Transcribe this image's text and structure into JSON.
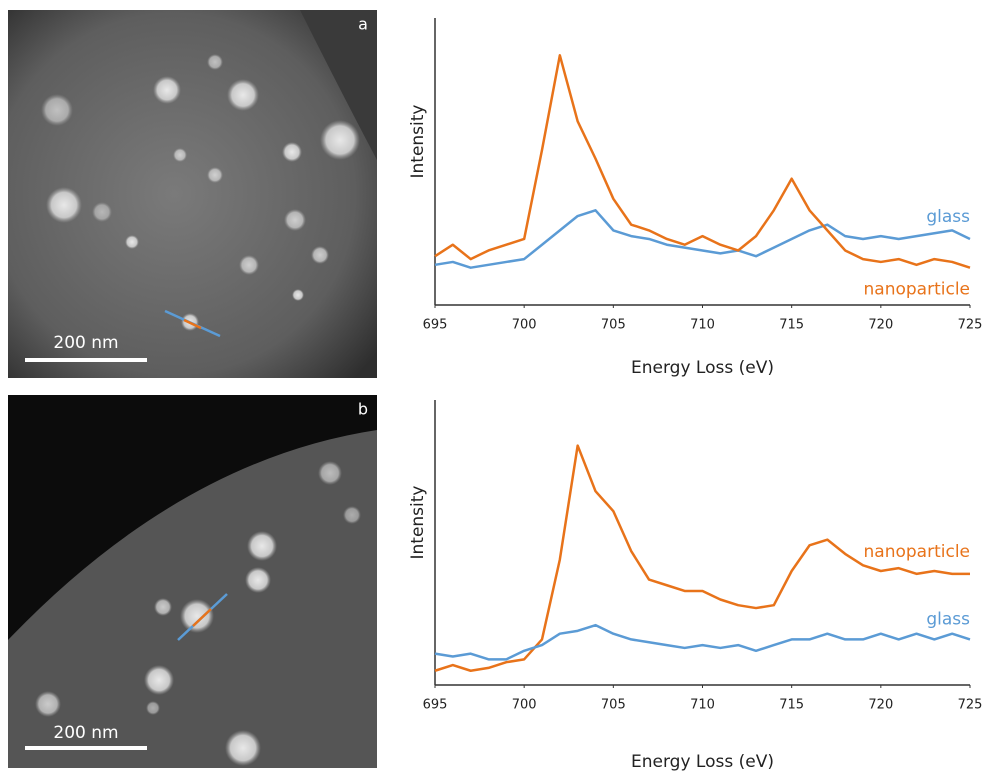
{
  "images": [
    {
      "label": "a",
      "scale_bar": "200 nm"
    },
    {
      "label": "b",
      "scale_bar": "200 nm"
    }
  ],
  "chart_data": [
    {
      "type": "line",
      "ylabel": "Intensity",
      "xlabel": "Energy Loss (eV)",
      "x": [
        695,
        696,
        697,
        698,
        699,
        700,
        701,
        702,
        703,
        704,
        705,
        706,
        707,
        708,
        709,
        710,
        711,
        712,
        713,
        714,
        715,
        716,
        717,
        718,
        719,
        720,
        721,
        722,
        723,
        724,
        725
      ],
      "xlim": [
        695,
        725
      ],
      "xticks": [
        695,
        700,
        705,
        710,
        715,
        720,
        725
      ],
      "ylim": [
        0,
        100
      ],
      "series": [
        {
          "name": "glass",
          "color": "#5b9bd5",
          "values": [
            14,
            15,
            13,
            14,
            15,
            16,
            21,
            26,
            31,
            33,
            26,
            24,
            23,
            21,
            20,
            19,
            18,
            19,
            17,
            20,
            23,
            26,
            28,
            24,
            23,
            24,
            23,
            24,
            25,
            26,
            23
          ]
        },
        {
          "name": "nanoparticle",
          "color": "#e8731a",
          "values": [
            17,
            21,
            16,
            19,
            21,
            23,
            54,
            87,
            64,
            51,
            37,
            28,
            26,
            23,
            21,
            24,
            21,
            19,
            24,
            33,
            44,
            33,
            26,
            19,
            16,
            15,
            16,
            14,
            16,
            15,
            13
          ]
        }
      ]
    },
    {
      "type": "line",
      "ylabel": "Intensity",
      "xlabel": "Energy Loss (eV)",
      "x": [
        695,
        696,
        697,
        698,
        699,
        700,
        701,
        702,
        703,
        704,
        705,
        706,
        707,
        708,
        709,
        710,
        711,
        712,
        713,
        714,
        715,
        716,
        717,
        718,
        719,
        720,
        721,
        722,
        723,
        724,
        725
      ],
      "xlim": [
        695,
        725
      ],
      "xticks": [
        695,
        700,
        705,
        710,
        715,
        720,
        725
      ],
      "ylim": [
        0,
        100
      ],
      "series": [
        {
          "name": "nanoparticle",
          "color": "#e8731a",
          "values": [
            5,
            7,
            5,
            6,
            8,
            9,
            16,
            44,
            84,
            68,
            61,
            47,
            37,
            35,
            33,
            33,
            30,
            28,
            27,
            28,
            40,
            49,
            51,
            46,
            42,
            40,
            41,
            39,
            40,
            39,
            39
          ]
        },
        {
          "name": "glass",
          "color": "#5b9bd5",
          "values": [
            11,
            10,
            11,
            9,
            9,
            12,
            14,
            18,
            19,
            21,
            18,
            16,
            15,
            14,
            13,
            14,
            13,
            14,
            12,
            14,
            16,
            16,
            18,
            16,
            16,
            18,
            16,
            18,
            16,
            18,
            16
          ]
        }
      ]
    }
  ]
}
